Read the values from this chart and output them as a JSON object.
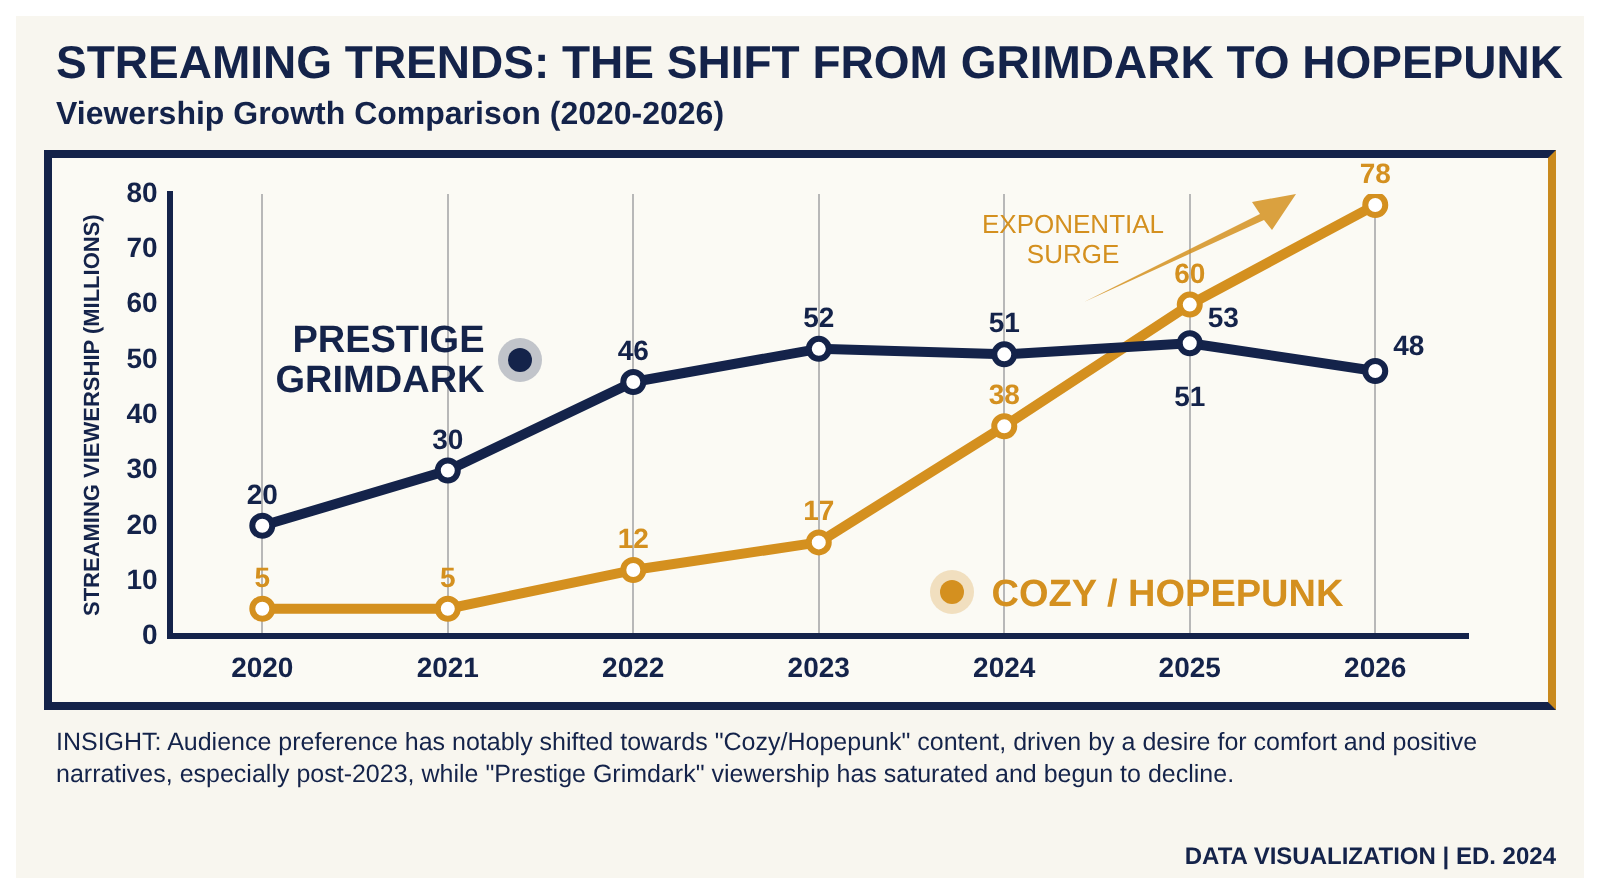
{
  "chart_data": {
    "type": "line",
    "title": "STREAMING TRENDS: THE SHIFT FROM GRIMDARK TO HOPEPUNK",
    "subtitle": "Viewership Growth Comparison (2020-2026)",
    "ylabel": "STREAMING VIEWERSHIP (MILLIONS)",
    "categories": [
      "2020",
      "2021",
      "2022",
      "2023",
      "2024",
      "2025",
      "2026"
    ],
    "series": [
      {
        "name": "PRESTIGE GRIMDARK",
        "color": "#14234a",
        "values": [
          20,
          30,
          46,
          52,
          51,
          53,
          48
        ]
      },
      {
        "name": "COZY / HOPEPUNK",
        "color": "#d4901f",
        "values": [
          5,
          5,
          12,
          17,
          38,
          60,
          78
        ]
      }
    ],
    "ylim": [
      0,
      80
    ],
    "yticks": [
      0,
      10,
      20,
      30,
      40,
      50,
      60,
      70,
      80
    ],
    "grid": "x",
    "legend": "bottom right",
    "marker": "circle",
    "line_style": "solid",
    "data_labels": true,
    "annotations": [
      {
        "text": "51",
        "x": "2025",
        "y": 51
      },
      "EXPONENTIAL SURGE",
      "INSIGHT: Audience preference has notably shifted towards \"Cozy/Hopepunk\" content, driven by a desire for comfort and positive narratives, especially post-2023, while \"Prestige Grimdark\" viewership has saturated and begun to decline.",
      "DATA VISUALIZATION | ED. 2024"
    ]
  }
}
